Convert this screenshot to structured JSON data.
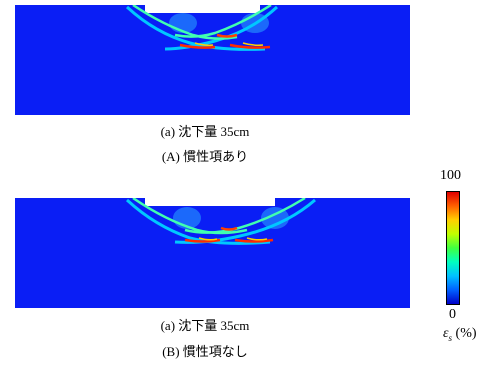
{
  "panels": [
    {
      "caption_a": "(a) 沈下量 35cm",
      "caption_b": "(A) 慣性項あり"
    },
    {
      "caption_a": "(a) 沈下量 35cm",
      "caption_b": "(B) 慣性項なし"
    }
  ],
  "colorbar": {
    "max_label": "100",
    "min_label": "0",
    "quantity_symbol": "ε",
    "quantity_subscript": "s",
    "quantity_unit": "(%)",
    "colors": [
      "#0000c8",
      "#0060ff",
      "#00c0ff",
      "#00ffc0",
      "#40ff40",
      "#c0ff00",
      "#ffd000",
      "#ff6000",
      "#e00000"
    ]
  },
  "colors": {
    "background_field": "#0a1ef5",
    "shear_band_low": "#00b4ff",
    "shear_band_mid": "#00ffb0",
    "shear_band_high": "#ff2a00"
  }
}
